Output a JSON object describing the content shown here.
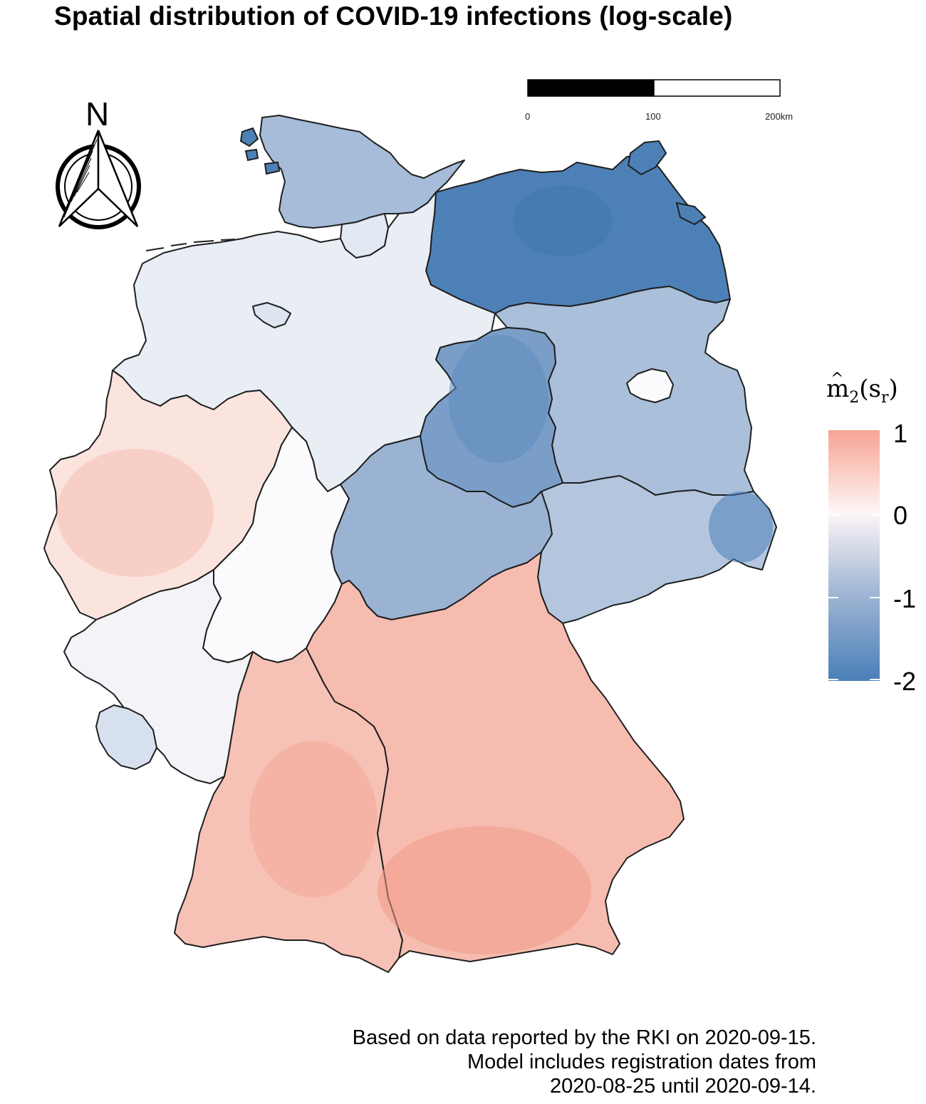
{
  "title": "Spatial distribution of COVID-19 infections (log-scale)",
  "north_arrow": {
    "label": "N"
  },
  "scale_bar": {
    "ticks": [
      "0",
      "100",
      "200km"
    ]
  },
  "legend": {
    "title_base": "m",
    "title_sub": "2",
    "title_arg": "(s",
    "title_arg_sub": "r",
    "title_close": ")",
    "title_hat": "^",
    "labels": [
      "1",
      "0",
      "-1",
      "-2"
    ],
    "range": [
      -2,
      1
    ],
    "colors": {
      "high": "#f4a190",
      "mid": "#fdf6f6",
      "low": "#4a7fb8"
    }
  },
  "caption": [
    "Based on data reported by the RKI on 2020-09-15.",
    "Model includes registration dates from",
    "2020-08-25 until 2020-09-14."
  ],
  "map": {
    "regions": [
      {
        "name": "Schleswig-Holstein",
        "value": -0.9
      },
      {
        "name": "Hamburg",
        "value": -0.2
      },
      {
        "name": "Mecklenburg-Vorpommern",
        "value": -1.6
      },
      {
        "name": "Niedersachsen",
        "value": -0.3
      },
      {
        "name": "Bremen",
        "value": -0.5
      },
      {
        "name": "Brandenburg",
        "value": -0.9
      },
      {
        "name": "Berlin",
        "value": 0.0
      },
      {
        "name": "Sachsen-Anhalt",
        "value": -1.2
      },
      {
        "name": "Nordrhein-Westfalen",
        "value": 0.4
      },
      {
        "name": "Hessen",
        "value": 0.1
      },
      {
        "name": "Thüringen",
        "value": -0.8
      },
      {
        "name": "Sachsen",
        "value": -0.6
      },
      {
        "name": "Rheinland-Pfalz",
        "value": -0.1
      },
      {
        "name": "Saarland",
        "value": -0.5
      },
      {
        "name": "Baden-Württemberg",
        "value": 0.6
      },
      {
        "name": "Bayern",
        "value": 0.7
      }
    ]
  }
}
